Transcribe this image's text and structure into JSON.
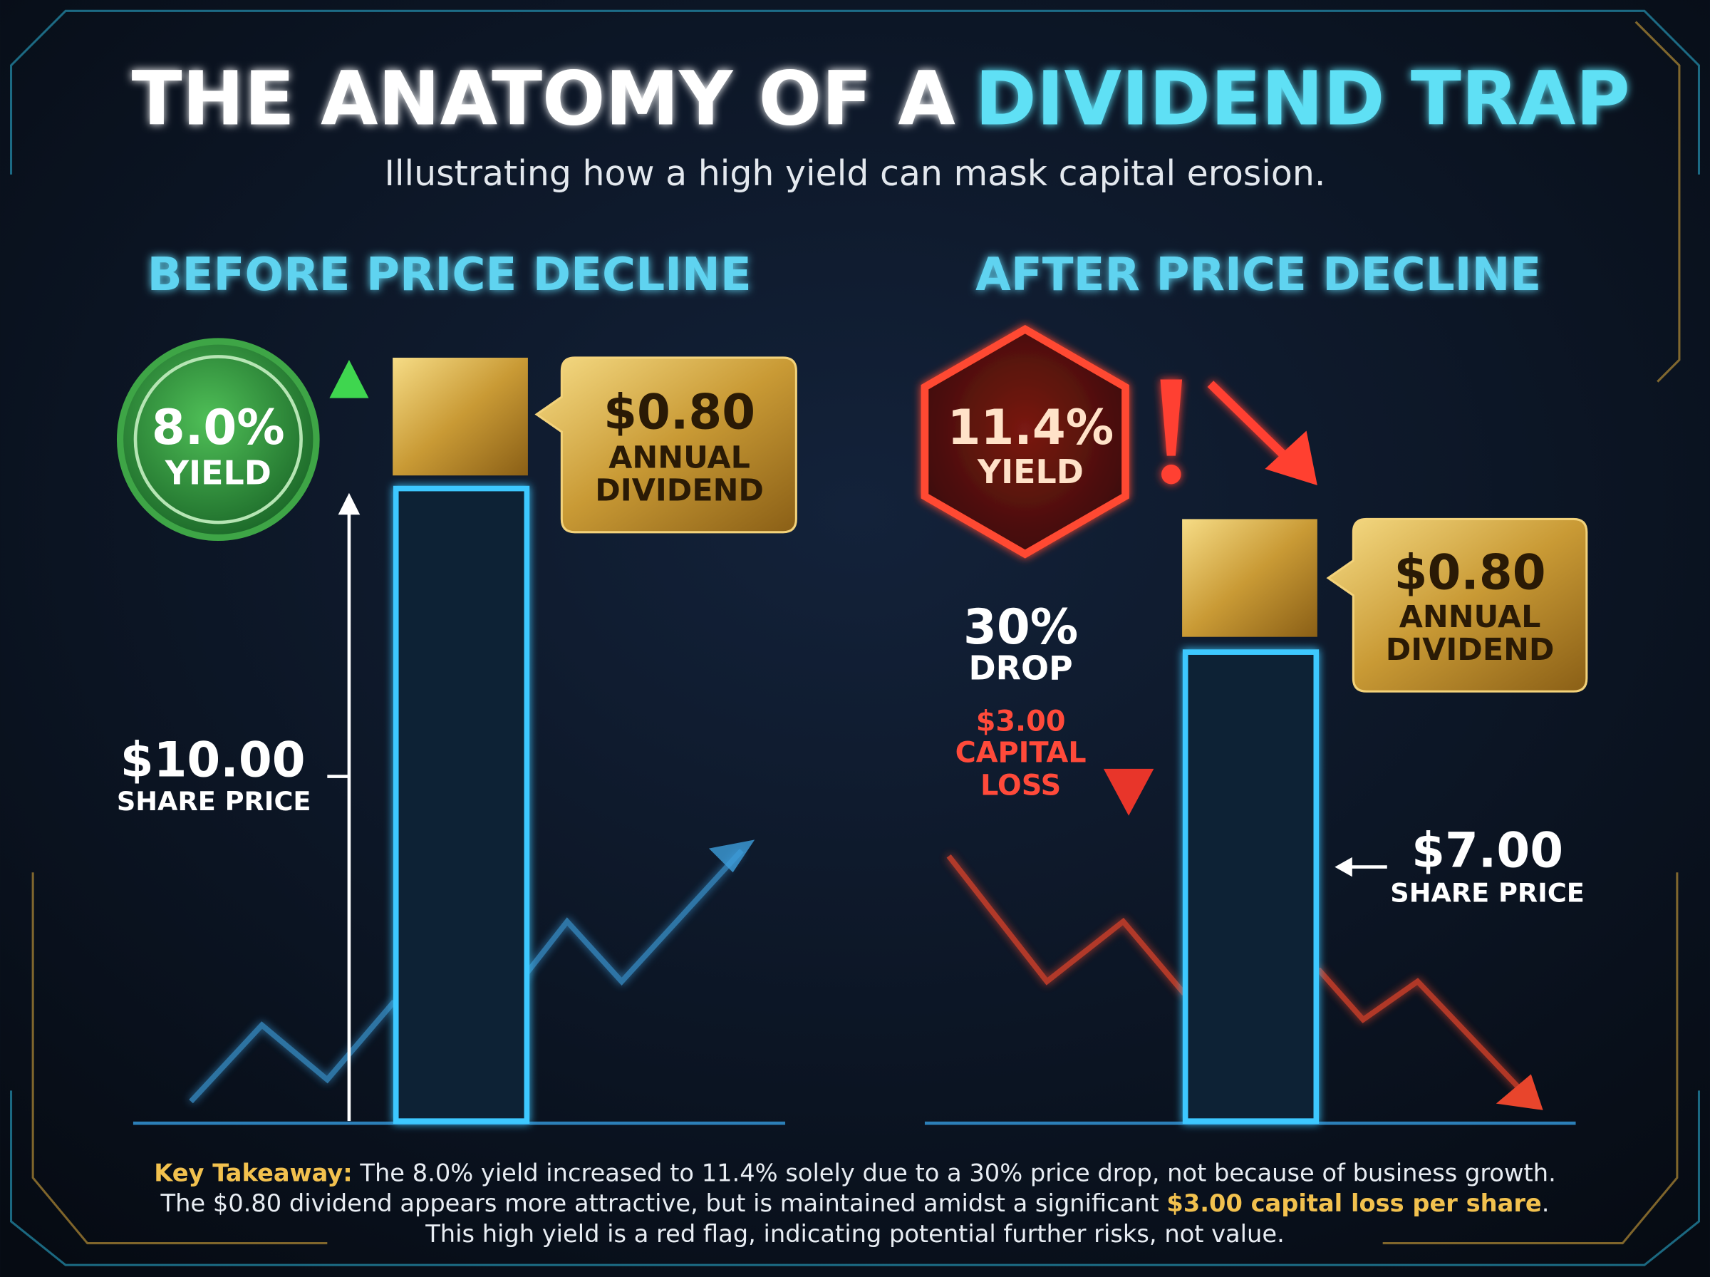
{
  "title": {
    "plain": "THE ANATOMY OF A",
    "highlight": "DIVIDEND TRAP"
  },
  "subtitle": "Illustrating how a high yield can mask capital erosion.",
  "before": {
    "heading": "BEFORE PRICE DECLINE",
    "yield_value": "8.0%",
    "yield_label": "YIELD",
    "dividend_value": "$0.80",
    "dividend_label": [
      "ANNUAL",
      "DIVIDEND"
    ],
    "price_value": "$10.00",
    "price_label": "SHARE PRICE"
  },
  "after": {
    "heading": "AFTER PRICE DECLINE",
    "yield_value": "11.4%",
    "yield_label": "YIELD",
    "dividend_value": "$0.80",
    "dividend_label": [
      "ANNUAL",
      "DIVIDEND"
    ],
    "drop_value": "30%",
    "drop_label": "DROP",
    "loss_label": [
      "$3.00",
      "CAPITAL",
      "LOSS"
    ],
    "price_value": "$7.00",
    "price_label": "SHARE PRICE"
  },
  "takeaway": [
    [
      {
        "text": "Key Takeaway:",
        "highlight": true
      },
      {
        "text": " The 8.0% yield increased to 11.4% solely due to a 30% price drop, not because of business growth.",
        "highlight": false
      }
    ],
    [
      {
        "text": "The $0.80 dividend appears more attractive, but is maintained amidst a significant ",
        "highlight": false
      },
      {
        "text": "$3.00 capital loss per share",
        "highlight": true
      },
      {
        "text": ".",
        "highlight": false
      }
    ],
    [
      {
        "text": "This high yield is a red flag, indicating potential further risks, not value.",
        "highlight": false
      }
    ]
  ]
}
